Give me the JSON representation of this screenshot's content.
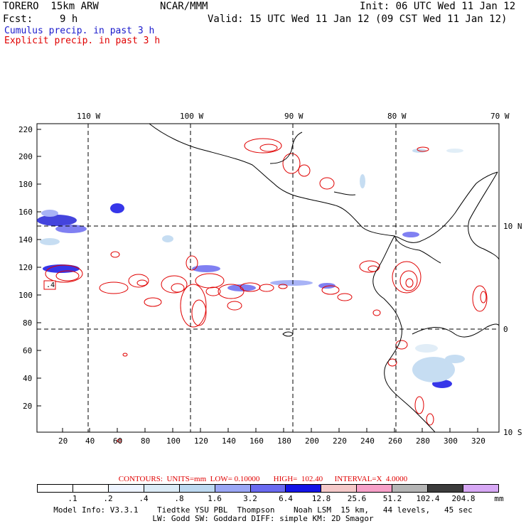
{
  "header": {
    "model": "TORERO  15km ARW",
    "org": "NCAR/MMM",
    "init": "Init: 06 UTC Wed 11 Jan 12",
    "fcst_label": "Fcst:",
    "fcst_value": "9 h",
    "valid": "Valid: 15 UTC Wed 11 Jan 12 (09 CST Wed 11 Jan 12)",
    "field1": "Cumulus precip. in past 3 h",
    "field2": "Explicit precip. in past 3 h"
  },
  "colors": {
    "cumulus": "#1a1acc",
    "explicit": "#e00000"
  },
  "longitude_labels": [
    "110 W",
    "100 W",
    "90 W",
    "80 W",
    "70 W"
  ],
  "latitude_labels": [
    "10 N",
    "0",
    "10 S"
  ],
  "grid_y_labels": [
    "220",
    "200",
    "180",
    "160",
    "140",
    "120",
    "100",
    "80",
    "60",
    "40",
    "20"
  ],
  "grid_x_labels": [
    "20",
    "40",
    "60",
    "80",
    "100",
    "120",
    "140",
    "160",
    "180",
    "200",
    "220",
    "240",
    "260",
    "280",
    "300",
    "320"
  ],
  "contour_box_label": ".4",
  "contours": {
    "text": "CONTOURS:  UNITS=mm  LOW= 0.10000       HIGH=  102.40      INTERVAL=X  4.0000"
  },
  "legend": {
    "colors": [
      "#ffffff",
      "#ffffff",
      "#eef4ff",
      "#dcebf6",
      "#bdd8f0",
      "#9aa6f5",
      "#6a6af0",
      "#1414e6",
      "#f5c8c8",
      "#f7a0c8",
      "#b5b5b5",
      "#3c3c3c",
      "#d7a8f5"
    ],
    "labels": [
      ".1",
      ".2",
      ".4",
      ".8",
      "1.6",
      "3.2",
      "6.4",
      "12.8",
      "25.6",
      "51.2",
      "102.4",
      "204.8"
    ],
    "unit": "mm"
  },
  "footer": {
    "line1": "Model Info: V3.3.1    Tiedtke YSU PBL  Thompson    Noah LSM  15 km,   44 levels,   45 sec",
    "line2": "LW: Godd SW: Goddard DIFF: simple KM: 2D Smagor"
  }
}
